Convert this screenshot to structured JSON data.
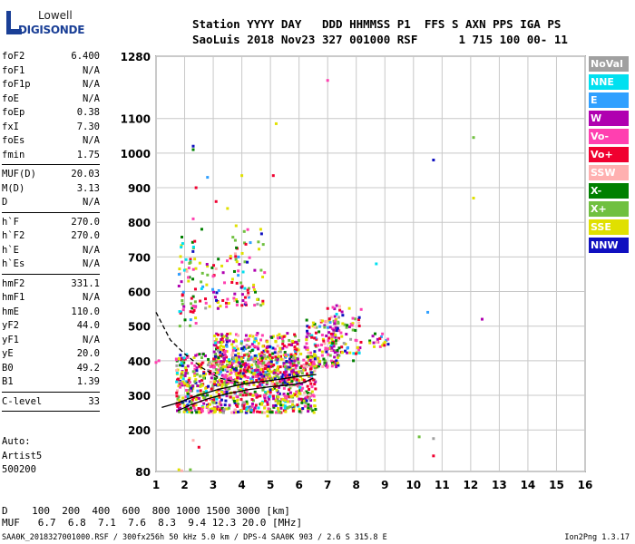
{
  "logo": {
    "line1": "Lowell",
    "line2": "DIGISONDE"
  },
  "header": {
    "line1": "Station YYYY DAY   DDD HHMMSS P1  FFS S AXN PPS IGA PS",
    "line2": "SaoLuis 2018 Nov23 327 001000 RSF      1 715 100 00- 11"
  },
  "params": [
    {
      "name": "foF2",
      "value": "6.400"
    },
    {
      "name": "foF1",
      "value": "N/A"
    },
    {
      "name": "foF1p",
      "value": "N/A"
    },
    {
      "name": "foE",
      "value": "N/A"
    },
    {
      "name": "foEp",
      "value": "0.38"
    },
    {
      "name": "fxI",
      "value": "7.30"
    },
    {
      "name": "foEs",
      "value": "N/A"
    },
    {
      "name": "fmin",
      "value": "1.75"
    },
    {
      "name": "MUF(D)",
      "value": "20.03"
    },
    {
      "name": "M(D)",
      "value": "3.13"
    },
    {
      "name": "D",
      "value": "N/A"
    },
    {
      "name": "h`F",
      "value": "270.0"
    },
    {
      "name": "h`F2",
      "value": "270.0"
    },
    {
      "name": "h`E",
      "value": "N/A"
    },
    {
      "name": "h`Es",
      "value": "N/A"
    },
    {
      "name": "hmF2",
      "value": "331.1"
    },
    {
      "name": "hmF1",
      "value": "N/A"
    },
    {
      "name": "hmE",
      "value": "110.0"
    },
    {
      "name": "yF2",
      "value": "44.0"
    },
    {
      "name": "yF1",
      "value": "N/A"
    },
    {
      "name": "yE",
      "value": "20.0"
    },
    {
      "name": "B0",
      "value": "49.2"
    },
    {
      "name": "B1",
      "value": "1.39"
    },
    {
      "name": "C-level",
      "value": "33"
    }
  ],
  "auto": {
    "line1": "Auto:",
    "line2": "Artist5",
    "line3": "500200"
  },
  "legend": [
    {
      "label": "NoVal",
      "color": "#a0a0a0"
    },
    {
      "label": "NNE",
      "color": "#00e0f0"
    },
    {
      "label": "E",
      "color": "#30a0ff"
    },
    {
      "label": "W",
      "color": "#b000b0"
    },
    {
      "label": "Vo-",
      "color": "#ff40b0"
    },
    {
      "label": "Vo+",
      "color": "#f00030"
    },
    {
      "label": "SSW",
      "color": "#ffb0b0"
    },
    {
      "label": "X-",
      "color": "#008000"
    },
    {
      "label": "X+",
      "color": "#70c040"
    },
    {
      "label": "SSE",
      "color": "#e0e000"
    },
    {
      "label": "NNW",
      "color": "#1010c0"
    }
  ],
  "dmuf": {
    "line1": "D    100  200  400  600  800 1000 1500 3000 [km]",
    "line2": "MUF   6.7  6.8  7.1  7.6  8.3  9.4 12.3 20.0 [MHz]"
  },
  "footer": "SAA0K_2018327001000.RSF / 300fx256h 50 kHz 5.0 km / DPS-4 SAA0K 903 / 2.6 S 315.8 E",
  "version": "Ion2Png 1.3.17",
  "chart_data": {
    "type": "scatter",
    "xlim": [
      1,
      16
    ],
    "ylim": [
      80,
      1280
    ],
    "x_ticks": [
      1,
      2,
      3,
      4,
      5,
      6,
      7,
      8,
      9,
      10,
      11,
      12,
      13,
      14,
      15,
      16
    ],
    "y_ticks": [
      80,
      200,
      300,
      400,
      500,
      600,
      700,
      800,
      900,
      1000,
      1100,
      1280
    ],
    "grid": true,
    "traces": [
      {
        "name": "profile",
        "style": "solid",
        "points": [
          [
            1.75,
            255
          ],
          [
            2.2,
            272
          ],
          [
            2.8,
            290
          ],
          [
            3.5,
            305
          ],
          [
            4.2,
            316
          ],
          [
            5.0,
            325
          ],
          [
            5.8,
            331
          ],
          [
            6.2,
            338
          ],
          [
            6.5,
            350
          ]
        ]
      },
      {
        "name": "virtual-height",
        "style": "solid",
        "points": [
          [
            1.2,
            265
          ],
          [
            1.75,
            278
          ],
          [
            2.4,
            298
          ],
          [
            3.2,
            318
          ],
          [
            4.2,
            335
          ],
          [
            5.2,
            345
          ],
          [
            6.0,
            355
          ],
          [
            6.6,
            360
          ]
        ]
      },
      {
        "name": "extrapolated",
        "style": "dashed",
        "points": [
          [
            1.0,
            540
          ],
          [
            1.5,
            460
          ],
          [
            2.0,
            420
          ],
          [
            2.6,
            380
          ],
          [
            3.2,
            350
          ],
          [
            4.0,
            335
          ]
        ]
      }
    ],
    "clusters": [
      {
        "x": [
          1.7,
          6.6
        ],
        "y": [
          250,
          420
        ],
        "n": 900
      },
      {
        "x": [
          3.0,
          6.0
        ],
        "y": [
          330,
          480
        ],
        "n": 500
      },
      {
        "x": [
          6.2,
          7.4
        ],
        "y": [
          380,
          520
        ],
        "n": 150
      },
      {
        "x": [
          7.0,
          8.2
        ],
        "y": [
          420,
          560
        ],
        "n": 80
      },
      {
        "x": [
          1.8,
          2.4
        ],
        "y": [
          500,
          760
        ],
        "n": 60
      },
      {
        "x": [
          3.6,
          4.8
        ],
        "y": [
          560,
          780
        ],
        "n": 70
      },
      {
        "x": [
          2.5,
          3.6
        ],
        "y": [
          550,
          700
        ],
        "n": 40
      },
      {
        "x": [
          8.4,
          9.2
        ],
        "y": [
          440,
          480
        ],
        "n": 20
      }
    ],
    "points": [
      {
        "x": 2.3,
        "y": 1020
      },
      {
        "x": 2.3,
        "y": 1010
      },
      {
        "x": 2.8,
        "y": 930
      },
      {
        "x": 2.4,
        "y": 900
      },
      {
        "x": 3.1,
        "y": 860
      },
      {
        "x": 3.5,
        "y": 840
      },
      {
        "x": 2.3,
        "y": 810
      },
      {
        "x": 2.6,
        "y": 780
      },
      {
        "x": 3.8,
        "y": 790
      },
      {
        "x": 5.2,
        "y": 1085
      },
      {
        "x": 5.1,
        "y": 935
      },
      {
        "x": 4.0,
        "y": 935
      },
      {
        "x": 10.7,
        "y": 980
      },
      {
        "x": 12.1,
        "y": 1045
      },
      {
        "x": 12.1,
        "y": 870
      },
      {
        "x": 7.0,
        "y": 1210
      },
      {
        "x": 8.7,
        "y": 680
      },
      {
        "x": 10.5,
        "y": 540
      },
      {
        "x": 12.4,
        "y": 520
      },
      {
        "x": 10.2,
        "y": 180
      },
      {
        "x": 10.7,
        "y": 175
      },
      {
        "x": 10.7,
        "y": 125
      },
      {
        "x": 2.3,
        "y": 170
      },
      {
        "x": 2.5,
        "y": 150
      },
      {
        "x": 2.2,
        "y": 85
      },
      {
        "x": 1.8,
        "y": 85
      },
      {
        "x": 1.9,
        "y": 82
      },
      {
        "x": 1.1,
        "y": 400
      },
      {
        "x": 1.0,
        "y": 395
      },
      {
        "x": 4.9,
        "y": 240
      },
      {
        "x": 5.8,
        "y": 255
      },
      {
        "x": 3.3,
        "y": 310
      },
      {
        "x": 7.9,
        "y": 400
      },
      {
        "x": 7.4,
        "y": 415
      }
    ]
  }
}
